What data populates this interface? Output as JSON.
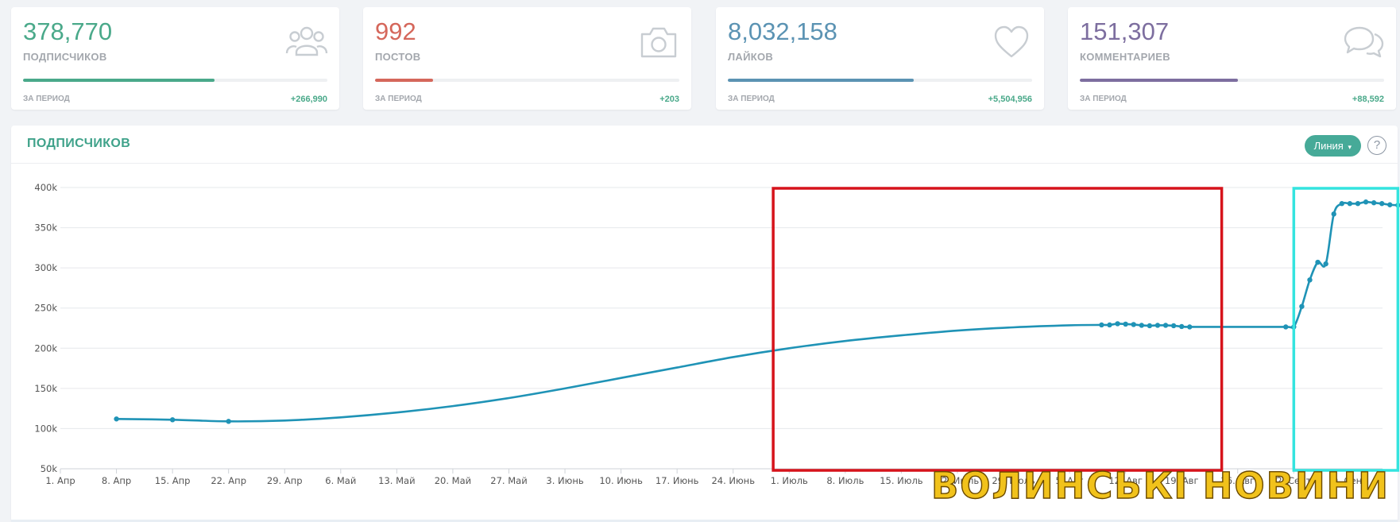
{
  "stats": [
    {
      "value": "378,770",
      "label": "ПОДПИСЧИКОВ",
      "period_label": "ЗА ПЕРИОД",
      "delta": "+266,990",
      "color": "#4aa98a",
      "fill_fraction": 0.63,
      "icon": "users-icon"
    },
    {
      "value": "992",
      "label": "ПОСТОВ",
      "period_label": "ЗА ПЕРИОД",
      "delta": "+203",
      "color": "#d5675b",
      "fill_fraction": 0.19,
      "icon": "camera-icon"
    },
    {
      "value": "8,032,158",
      "label": "ЛАЙКОВ",
      "period_label": "ЗА ПЕРИОД",
      "delta": "+5,504,956",
      "color": "#5b93b3",
      "fill_fraction": 0.61,
      "icon": "heart-icon"
    },
    {
      "value": "151,307",
      "label": "КОММЕНТАРИЕВ",
      "period_label": "ЗА ПЕРИОД",
      "delta": "+88,592",
      "color": "#7d6e9f",
      "fill_fraction": 0.52,
      "icon": "chat-bubbles-icon"
    }
  ],
  "panel": {
    "title": "ПОДПИСЧИКОВ",
    "mode_label": "Линия",
    "help_label": "?"
  },
  "watermark": "ВОЛИНСЬКІ НОВИНИ",
  "chart_data": {
    "type": "line",
    "series": [
      {
        "x": [
          "2020-04-07",
          "2020-04-14",
          "2020-04-21",
          "2020-04-28",
          "2020-05-05",
          "2020-05-12",
          "2020-05-19",
          "2020-05-26",
          "2020-06-02",
          "2020-06-09",
          "2020-06-16",
          "2020-06-23",
          "2020-06-30",
          "2020-07-07",
          "2020-07-14",
          "2020-07-21",
          "2020-07-28",
          "2020-08-04",
          "2020-08-08",
          "2020-08-09",
          "2020-08-10",
          "2020-08-11",
          "2020-08-12",
          "2020-08-13",
          "2020-08-14",
          "2020-08-15",
          "2020-08-16",
          "2020-08-17",
          "2020-08-18",
          "2020-08-19",
          "2020-08-24",
          "2020-08-31",
          "2020-09-01",
          "2020-09-02",
          "2020-09-03",
          "2020-09-04",
          "2020-09-05",
          "2020-09-06",
          "2020-09-07",
          "2020-09-08",
          "2020-09-09",
          "2020-09-10",
          "2020-09-11",
          "2020-09-12",
          "2020-09-13",
          "2020-09-14"
        ],
        "values": [
          112000,
          111000,
          109000,
          110000,
          114000,
          120000,
          128000,
          138000,
          150000,
          163000,
          176000,
          189000,
          200000,
          209000,
          216000,
          222000,
          226000,
          228500,
          229000,
          229000,
          230500,
          230000,
          229500,
          228500,
          228000,
          228500,
          228500,
          228000,
          227000,
          226500,
          226500,
          226500,
          226500,
          252000,
          285000,
          307000,
          305000,
          367000,
          380000,
          380000,
          380000,
          382000,
          381000,
          380000,
          378500,
          378000
        ],
        "marked_points": [
          "2020-04-07",
          "2020-04-14",
          "2020-04-21",
          "2020-08-08",
          "2020-08-09",
          "2020-08-10",
          "2020-08-11",
          "2020-08-12",
          "2020-08-13",
          "2020-08-14",
          "2020-08-15",
          "2020-08-16",
          "2020-08-17",
          "2020-08-18",
          "2020-08-19",
          "2020-08-31",
          "2020-09-01",
          "2020-09-02",
          "2020-09-03",
          "2020-09-04",
          "2020-09-05",
          "2020-09-06",
          "2020-09-07",
          "2020-09-08",
          "2020-09-09",
          "2020-09-10",
          "2020-09-11",
          "2020-09-12",
          "2020-09-13",
          "2020-09-14"
        ],
        "color": "#1f93b6"
      }
    ],
    "ylim": [
      50000,
      400000
    ],
    "y_ticks": [
      "50k",
      "100k",
      "150k",
      "200k",
      "250k",
      "300k",
      "350k",
      "400k"
    ],
    "x_ticks": [
      "1. Апр",
      "8. Апр",
      "15. Апр",
      "22. Апр",
      "29. Апр",
      "6. Май",
      "13. Май",
      "20. Май",
      "27. Май",
      "3. Июнь",
      "10. Июнь",
      "17. Июнь",
      "24. Июнь",
      "1. Июль",
      "8. Июль",
      "15. Июль",
      "22. Июль",
      "29. Июль",
      "5. Авг",
      "12. Авг",
      "19. Авг",
      "26. Авг",
      "2. Сент",
      "9. Сент"
    ],
    "grid": true,
    "legend": "none",
    "highlight_boxes": [
      {
        "from": "2020-06-28",
        "to": "2020-08-23",
        "color": "#d6131b"
      },
      {
        "from": "2020-09-01",
        "to": "2020-09-14",
        "color": "#34e4df"
      }
    ]
  }
}
